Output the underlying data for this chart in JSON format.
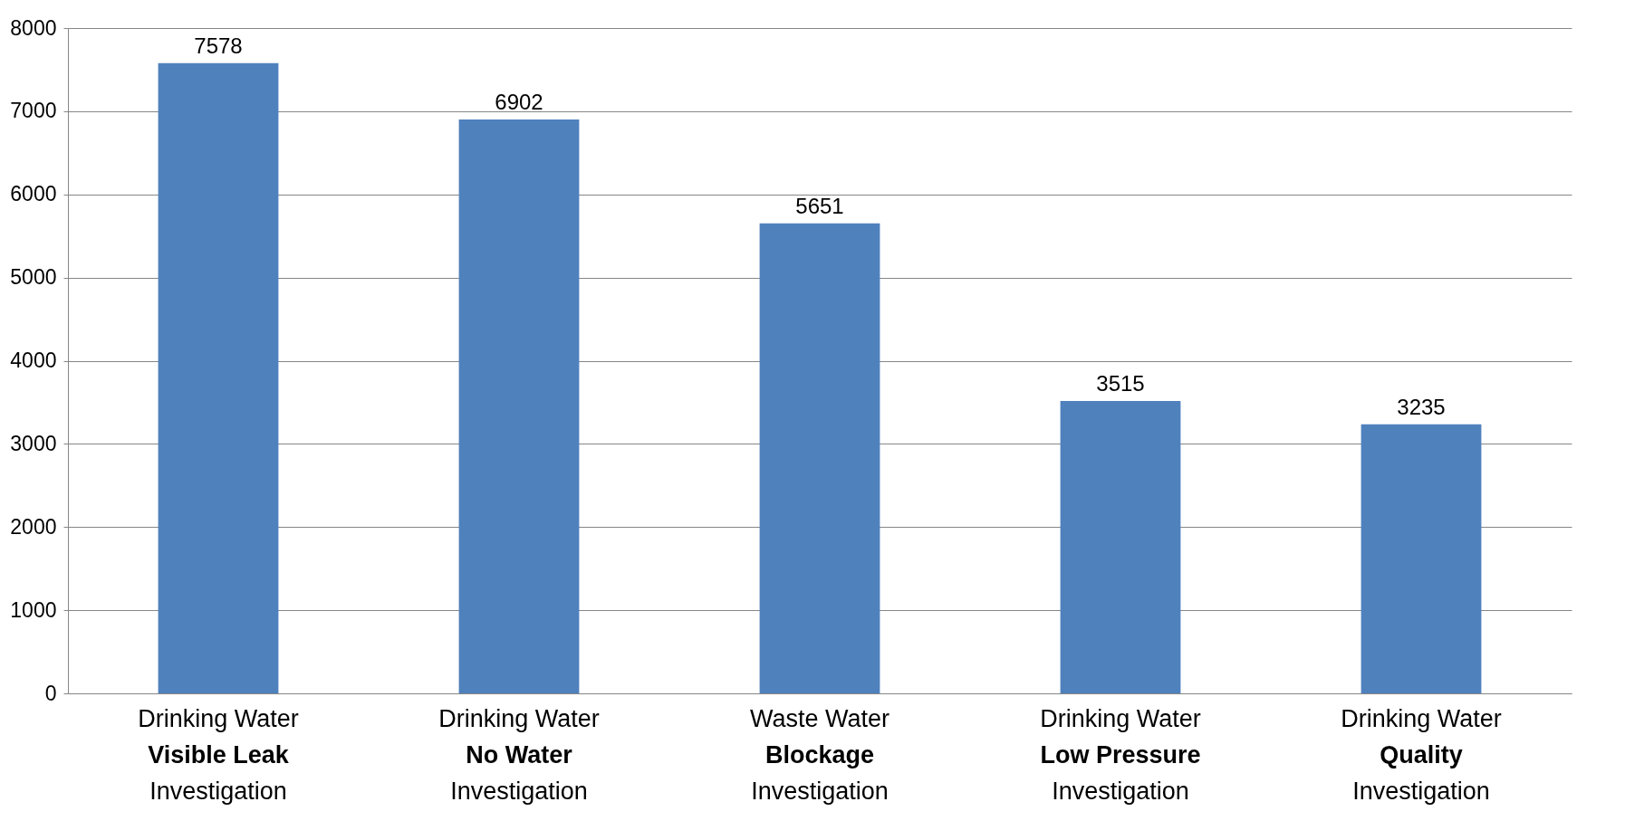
{
  "chart_data": {
    "type": "bar",
    "categories": [
      "Drinking Water\nVisible Leak\nInvestigation",
      "Drinking Water\nNo Water\nInvestigation",
      "Waste Water\nBlockage\nInvestigation",
      "Drinking Water\nLow Pressure\nInvestigation",
      "Drinking Water\nQuality\nInvestigation"
    ],
    "values": [
      7578,
      6902,
      5651,
      3515,
      3235
    ],
    "color": "#4f81bd",
    "ylim": [
      0,
      8000
    ],
    "yticks": [
      0,
      1000,
      2000,
      3000,
      4000,
      5000,
      6000,
      7000,
      8000
    ],
    "grid": "y",
    "data_labels": true
  }
}
